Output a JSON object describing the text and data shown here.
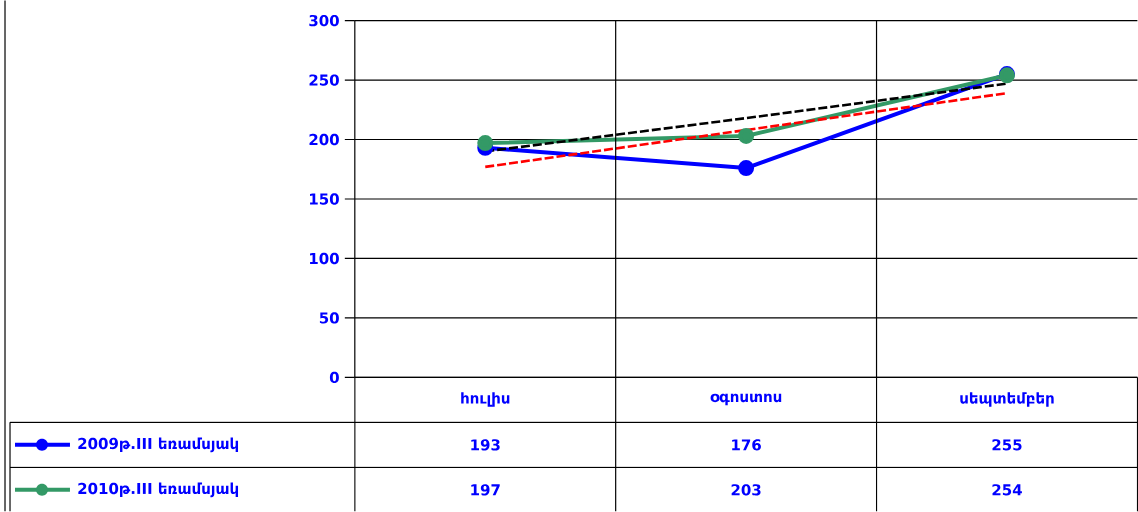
{
  "chart_data": {
    "type": "line",
    "categories": [
      "հուլիս",
      "օգոստոս",
      "սեպտեմբեր"
    ],
    "series": [
      {
        "name": "2009թ.III եռամսյակ",
        "color": "#0000ff",
        "values": [
          193,
          176,
          255
        ],
        "value_labels": [
          "193",
          "176",
          "255"
        ],
        "marker": "circle",
        "line_style": "solid"
      },
      {
        "name": "2010թ.III եռամսյակ",
        "color": "#339966",
        "values": [
          197,
          203,
          254
        ],
        "value_labels": [
          "197",
          "203",
          "254"
        ],
        "marker": "circle",
        "line_style": "solid"
      },
      {
        "type": "line",
        "color": "#000000",
        "values": [
          190,
          218,
          247
        ],
        "marker": "none",
        "line_style": "dashed"
      },
      {
        "type": "line",
        "color": "#ff0000",
        "values": [
          177,
          208,
          239
        ],
        "marker": "none",
        "line_style": "dashed"
      }
    ],
    "ylim": [
      0,
      300
    ],
    "yticks": [
      0,
      50,
      100,
      150,
      200,
      250,
      300
    ],
    "grid": true,
    "legend": "bottom"
  }
}
